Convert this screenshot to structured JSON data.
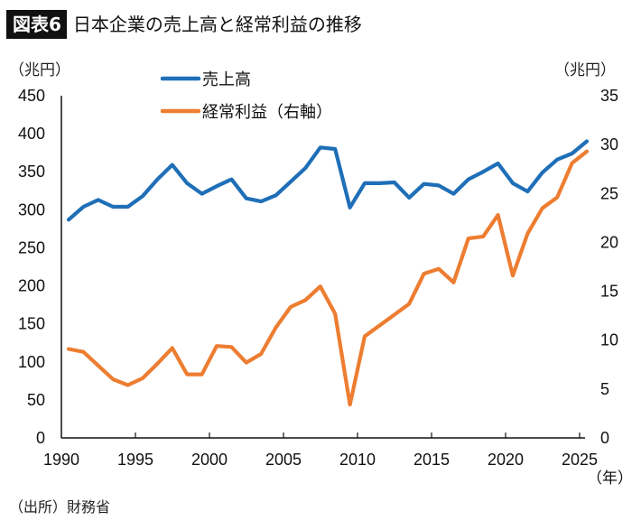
{
  "header": {
    "badge": "図表6",
    "title": "日本企業の売上高と経常利益の推移"
  },
  "units": {
    "left": "（兆円）",
    "right": "（兆円）",
    "x": "（年）"
  },
  "source": "（出所）財務省",
  "colors": {
    "sales": "#1f6fb8",
    "profit": "#ed7d31",
    "axis": "#111111"
  },
  "chart_data": {
    "type": "line",
    "title": "日本企業の売上高と経常利益の推移",
    "xlabel": "（年）",
    "ylabel": "（兆円）",
    "y2label": "（兆円）",
    "x": [
      1990,
      1991,
      1992,
      1993,
      1994,
      1995,
      1996,
      1997,
      1998,
      1999,
      2000,
      2001,
      2002,
      2003,
      2004,
      2005,
      2006,
      2007,
      2008,
      2009,
      2010,
      2011,
      2012,
      2013,
      2014,
      2015,
      2016,
      2017,
      2018,
      2019,
      2020,
      2021,
      2022,
      2023,
      2024,
      2025
    ],
    "xticks": [
      "1990",
      "1995",
      "2000",
      "2005",
      "2010",
      "2015",
      "2020",
      "2025"
    ],
    "ylim": [
      0,
      450
    ],
    "yticks": [
      "0",
      "50",
      "100",
      "150",
      "200",
      "250",
      "300",
      "350",
      "400",
      "450"
    ],
    "y2lim": [
      0,
      35
    ],
    "y2ticks": [
      "0",
      "5",
      "10",
      "15",
      "20",
      "25",
      "30",
      "35"
    ],
    "grid": false,
    "legend_position": "top-left",
    "series": [
      {
        "name": "売上高",
        "axis": "left",
        "color": "#1f6fb8",
        "values": [
          287,
          304,
          313,
          304,
          304,
          318,
          340,
          359,
          335,
          321,
          331,
          340,
          315,
          311,
          319,
          337,
          355,
          382,
          380,
          303,
          335,
          335,
          336,
          316,
          334,
          332,
          321,
          340,
          350,
          361,
          335,
          324,
          349,
          366,
          374,
          390
        ]
      },
      {
        "name": "経常利益（右軸）",
        "axis": "right",
        "color": "#ed7d31",
        "values": [
          9.1,
          8.8,
          7.4,
          6.0,
          5.4,
          6.1,
          7.6,
          9.2,
          6.5,
          6.5,
          9.4,
          9.3,
          7.7,
          8.6,
          11.3,
          13.4,
          14.1,
          15.5,
          12.7,
          3.4,
          10.4,
          11.5,
          12.6,
          13.7,
          16.8,
          17.3,
          15.9,
          20.4,
          20.6,
          22.8,
          16.6,
          20.9,
          23.5,
          24.6,
          28.1,
          29.3
        ]
      }
    ]
  }
}
